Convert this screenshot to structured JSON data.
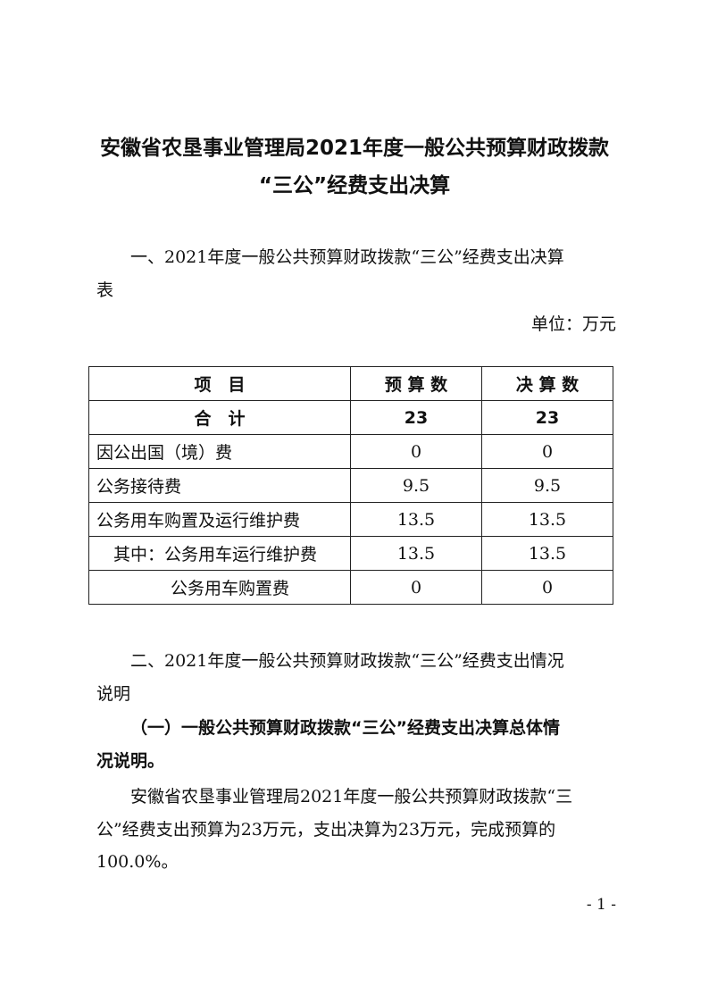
{
  "title": {
    "line1": "安徽省农垦事业管理局2021年度一般公共预算财政拨款",
    "line2": "“三公”经费支出决算"
  },
  "section1": {
    "heading_line1": "一、2021年度一般公共预算财政拨款“三公”经费支出决算",
    "heading_line2": "表",
    "unit": "单位：万元"
  },
  "table": {
    "headers": [
      "项　目",
      "预 算 数",
      "决 算 数"
    ],
    "rows": [
      {
        "item": "合　计",
        "budget": "23",
        "final": "23"
      },
      {
        "item": "因公出国（境）费",
        "budget": "0",
        "final": "0"
      },
      {
        "item": "公务接待费",
        "budget": "9.5",
        "final": "9.5"
      },
      {
        "item": "公务用车购置及运行维护费",
        "budget": "13.5",
        "final": "13.5"
      },
      {
        "item": "其中：公务用车运行维护费",
        "budget": "13.5",
        "final": "13.5"
      },
      {
        "item": "公务用车购置费",
        "budget": "0",
        "final": "0"
      }
    ]
  },
  "section2": {
    "heading_line1": "二、2021年度一般公共预算财政拨款“三公”经费支出情况",
    "heading_line2": "说明",
    "sub_line1": "（一）一般公共预算财政拨款“三公”经费支出决算总体情",
    "sub_line2": "况说明。",
    "para_line1": "安徽省农垦事业管理局2021年度一般公共预算财政拨款“三",
    "para_line2": "公”经费支出预算为23万元，支出决算为23万元，完成预算的",
    "para_line3": "100.0%。"
  },
  "page_number": "- 1 -"
}
